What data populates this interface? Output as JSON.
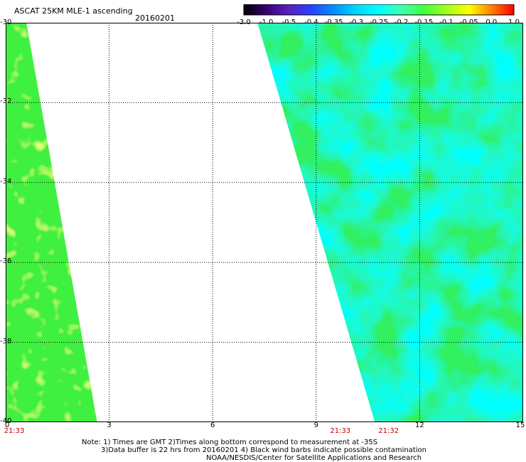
{
  "title": "ASCAT 25KM MLE-1 ascending",
  "date": "20160201",
  "colorbar": {
    "labels": [
      "-3.0",
      "-1.0",
      "-0.5",
      "-0.4",
      "-0.35",
      "-0.3",
      "-0.25",
      "-0.2",
      "-0.15",
      "-0.1",
      "-0.05",
      "0.0",
      "1.0"
    ],
    "colors": [
      "#000000",
      "#3a0070",
      "#5a20c0",
      "#2a40ff",
      "#0090ff",
      "#00d8ff",
      "#00ffff",
      "#40ffb0",
      "#40ff40",
      "#a0ff20",
      "#ffff00",
      "#ff8000",
      "#ff0000"
    ]
  },
  "map": {
    "longitude_ticks": [
      "0",
      "3",
      "6",
      "9",
      "12",
      "15"
    ],
    "latitude_ticks": [
      "-30",
      "-32",
      "-34",
      "-36",
      "-38",
      "-40"
    ],
    "lon_range": [
      0,
      15
    ],
    "lat_range": [
      -40,
      -30
    ],
    "passes": [
      {
        "time": "21:33",
        "lon": 0
      },
      {
        "time": "21:33",
        "lon": 9.7
      },
      {
        "time": "21:32",
        "lon": 11.1
      }
    ],
    "swaths": [
      {
        "top_lon": [
          0,
          0.6
        ],
        "bottom_lon": [
          0,
          2.65
        ]
      },
      {
        "top_lon": [
          7.3,
          15
        ],
        "bottom_lon": [
          10.7,
          15
        ]
      }
    ]
  },
  "notes": [
    "Note: 1) Times are GMT 2)Times along bottom correspond to measurement at -35S",
    "3)Data buffer is 22 hrs from 20160201 4) Black wind barbs indicate possible contamination",
    "NOAA/NESDIS/Center for Satellite Applications and Research"
  ]
}
